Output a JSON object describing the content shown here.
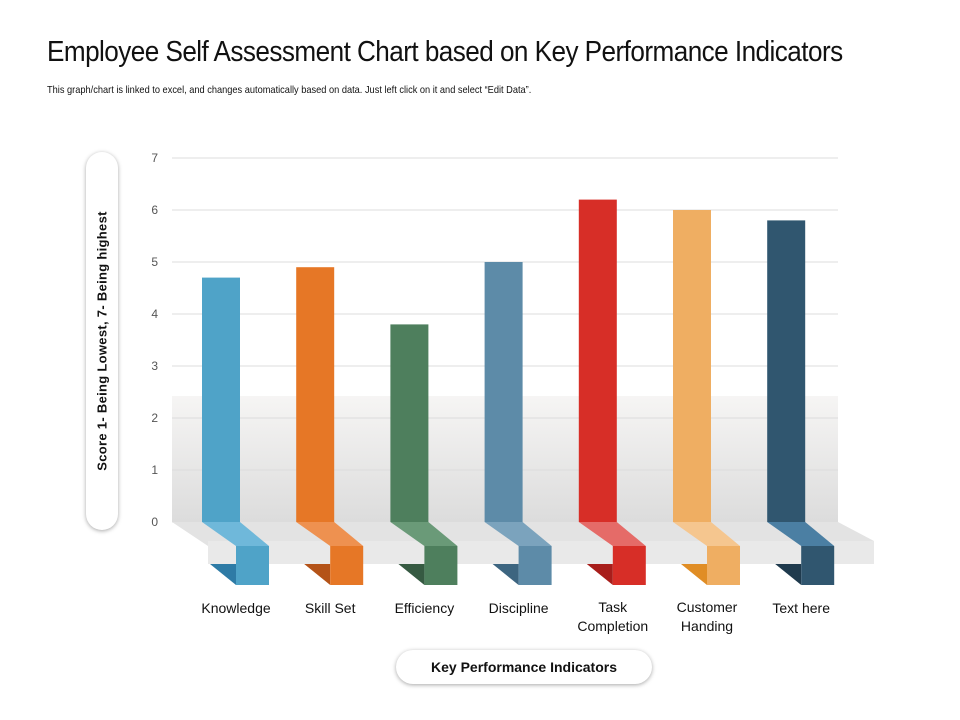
{
  "title": "Employee Self Assessment Chart based on Key Performance Indicators",
  "subtitle": "This graph/chart is linked to excel, and changes automatically  based on data. Just left click  on it and select “Edit Data”.",
  "chart_data": {
    "type": "bar",
    "categories": [
      "Knowledge",
      "Skill Set",
      "Efficiency",
      "Discipline",
      "Task Completion",
      "Customer Handing",
      "Text here"
    ],
    "category_lines": [
      [
        "Knowledge"
      ],
      [
        "Skill Set"
      ],
      [
        "Efficiency"
      ],
      [
        "Discipline"
      ],
      [
        "Task",
        "Completion"
      ],
      [
        "Customer",
        "Handing"
      ],
      [
        "Text here"
      ]
    ],
    "values": [
      4.7,
      4.9,
      3.8,
      5.0,
      6.2,
      6.0,
      5.8
    ],
    "colors": [
      "#4fa3c8",
      "#e67726",
      "#4e7f5d",
      "#5d8ba8",
      "#d72e27",
      "#efae62",
      "#30566f"
    ],
    "fold_colors": [
      "#6fb8da",
      "#ee9150",
      "#6a9a78",
      "#7ba3bd",
      "#e56b68",
      "#f5c68f",
      "#4b7fa3"
    ],
    "dark_colors": [
      "#2e7ba6",
      "#b45318",
      "#365a42",
      "#3d6580",
      "#a81e1b",
      "#e08d25",
      "#1f3a4d"
    ],
    "ylabel": "Score 1- Being Lowest, 7- Being highest",
    "xlabel": "Key Performance Indicators",
    "ylim": [
      0,
      7
    ],
    "yticks": [
      0,
      1,
      2,
      3,
      4,
      5,
      6,
      7
    ],
    "grid": true
  }
}
